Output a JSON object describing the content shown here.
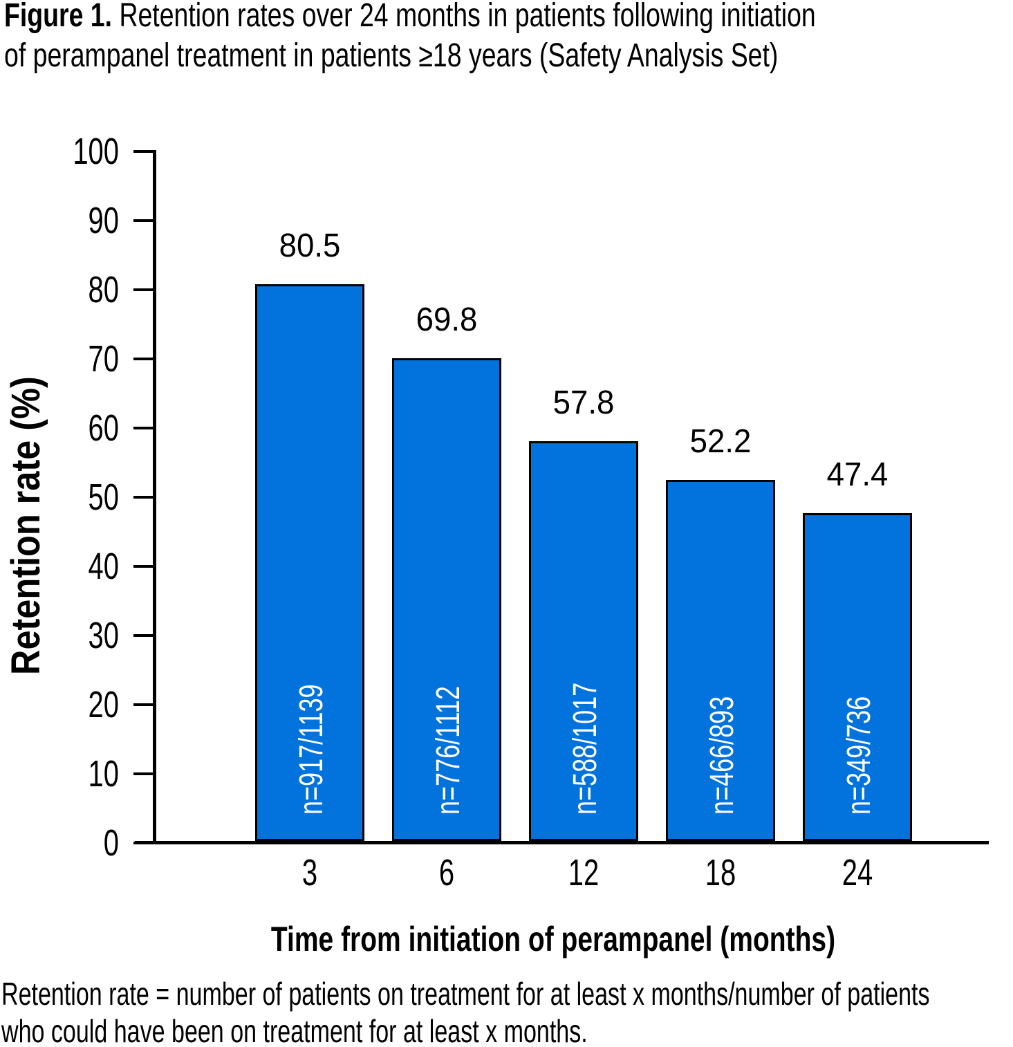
{
  "figure": {
    "label": "Figure 1.",
    "title_lines": [
      "Retention rates over 24 months in patients following initiation",
      "of perampanel treatment in patients ≥18 years (Safety Analysis Set)"
    ]
  },
  "chart_data": {
    "type": "bar",
    "title": "Figure 1. Retention rates over 24 months in patients following initiation of perampanel treatment in patients ≥18 years (Safety Analysis Set)",
    "categories": [
      "3",
      "6",
      "12",
      "18",
      "24"
    ],
    "values": [
      80.5,
      69.8,
      57.8,
      52.2,
      47.4
    ],
    "value_labels": [
      "80.5",
      "69.8",
      "57.8",
      "52.2",
      "47.4"
    ],
    "n_labels": [
      "n=917/1139",
      "n=776/1112",
      "n=588/1017",
      "n=466/893",
      "n=349/736"
    ],
    "xlabel": "Time from initiation of perampanel (months)",
    "ylabel": "Retention rate (%)",
    "ylim": [
      0,
      100
    ],
    "yticks": [
      0,
      10,
      20,
      30,
      40,
      50,
      60,
      70,
      80,
      90,
      100
    ],
    "grid": false,
    "legend": null,
    "bar_color": "#0272DC",
    "bar_border_color": "#000000",
    "n_label_color": "#FFFFFF",
    "axis_color": "#000000",
    "text_color": "#000000"
  },
  "footnote": {
    "lines": [
      "Retention rate = number of patients on treatment for at least x months/number of patients",
      "who could have been on treatment for at least x months."
    ]
  }
}
